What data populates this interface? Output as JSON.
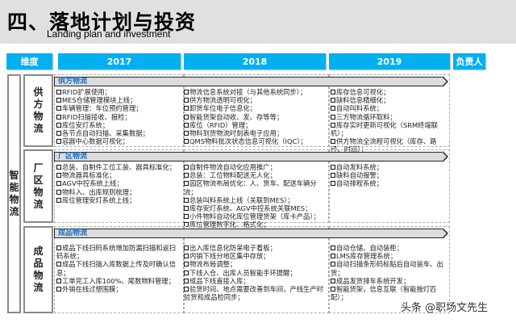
{
  "header": {
    "title": "四、落地计划与投资",
    "subtitle": "Landing plan and investment"
  },
  "columns": {
    "dimension": "维度",
    "y2017": "2017",
    "y2018": "2018",
    "y2019": "2019",
    "owner": "负责人"
  },
  "category": "智能物流",
  "sections": [
    {
      "label": "供方物流",
      "banner": "供方物流",
      "y2017": [
        "RFID扩展使用；",
        "MES仓储管理模块上线；",
        "车辆管理：车位预约管理；",
        "RFID扫描接收、报检；",
        "库位安灯系统；",
        "各节点自动扫描、采集数据；",
        "容器中心数据可视化；"
      ],
      "y2018": [
        "物流信息系统对接（与其他系统同步）；",
        "供方物流透明可视化；",
        "卸货车位电子信息化；",
        "智能货架自动收、发、存等等；",
        "库位（RFID）管理；",
        "物料到货物流时刻表电子应用；",
        "QMS物料批次状态信息可视化（IQC）；"
      ],
      "y2019": [
        "库存信息可视化；",
        "缺料信息精细化；",
        "自动叫料系统；",
        "三方物流循环取料；",
        "库存实时更新可视化（SRM终端联机）；",
        "供方物流全流程可视化（库存、路径、时间）；"
      ]
    },
    {
      "label": "厂区物流",
      "banner": "厂区物流",
      "y2017": [
        "总装、自制件工位工装、器具标准化；",
        "物流器具标准化；",
        "AGV中控系统上线；",
        "物料入、出库规则梳理；",
        "库位管理安灯系统上线；"
      ],
      "y2018": [
        "自制件物流自动化应用推广；",
        "总装：工位物料配送无人化；",
        "园区物流布局优化：人、货车、配送车辆分流；",
        "总装叫料系统上线（关联到MES）；",
        "库存安灯系统、AGV中控系统关联MES；",
        "小件物料自动化库位管理货架（库卡产品）；",
        "库位管理数字化、格式化；"
      ],
      "y2019": [
        "自动发料系统；",
        "缺料自动报警；",
        "自动排程系统；"
      ]
    },
    {
      "label": "成品物流",
      "banner": "成品物流",
      "y2017": [
        "成品下线扫码系统增加防漏扫描和返扫码系统；",
        "成品下线扫描入库数据上传及时确认信息；",
        "工单完工入库100%、尾数物料管理；",
        "外销在线过塑围膜；"
      ],
      "y2018": [
        "出入库信息化防呆电子看板；",
        "内销下线分地区集中存放；",
        "物流布局调整；",
        "下线入仓、出库人员智能手环提醒；",
        "成品下线直接入库；",
        "验货时间、地点需要改善到车间，产线生产时验货和成品检同步；"
      ],
      "y2019": [
        "自动仓储、自动装柜；",
        "LMS库存管理系统；",
        "自动扫描条形码标贴后自动装车、出货；",
        "成品发货排车系统开发；",
        "智能货架，信息互联（智能按灯匹配）；"
      ]
    }
  ],
  "watermark": "头条 @职场文先生",
  "colors": {
    "accent": "#00b0f0",
    "banner_text": "#1a6fc0",
    "band": "#e0e0e0"
  }
}
